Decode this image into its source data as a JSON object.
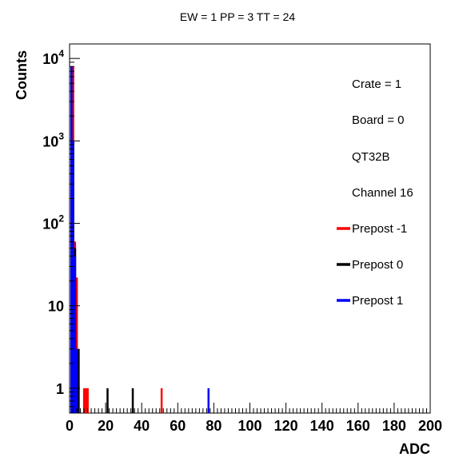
{
  "chart_data": {
    "type": "bar",
    "title": "EW = 1 PP = 3 TT = 24",
    "xlabel": "ADC",
    "ylabel": "Counts",
    "xlim": [
      0,
      200
    ],
    "ylim": [
      0.5,
      15000
    ],
    "log_y": true,
    "grid": false,
    "x_ticks": [
      0,
      20,
      40,
      60,
      80,
      100,
      120,
      140,
      160,
      180,
      200
    ],
    "y_ticks": [
      {
        "value": 1,
        "base": "1",
        "exp": ""
      },
      {
        "value": 10,
        "base": "10",
        "exp": ""
      },
      {
        "value": 100,
        "base": "10",
        "exp": "2"
      },
      {
        "value": 1000,
        "base": "10",
        "exp": "3"
      },
      {
        "value": 10000,
        "base": "10",
        "exp": "4"
      }
    ],
    "legend_placement": "right",
    "legend_info": [
      "Crate = 1",
      "Board = 0",
      "QT32B",
      "Channel 16"
    ],
    "series": [
      {
        "name": "Prepost -1",
        "color": "#ff0000",
        "x": [
          2,
          3,
          4,
          8,
          9,
          10,
          51
        ],
        "values": [
          8000,
          60,
          22,
          1,
          1,
          1,
          1
        ]
      },
      {
        "name": "Prepost 0",
        "color": "#000000",
        "x": [
          1,
          2,
          3,
          4,
          5,
          21,
          35
        ],
        "values": [
          8000,
          1000,
          50,
          3,
          3,
          1,
          1
        ]
      },
      {
        "name": "Prepost 1",
        "color": "#0000ff",
        "x": [
          1,
          2,
          3,
          4,
          77
        ],
        "values": [
          8000,
          1000,
          40,
          3,
          1
        ]
      }
    ]
  }
}
